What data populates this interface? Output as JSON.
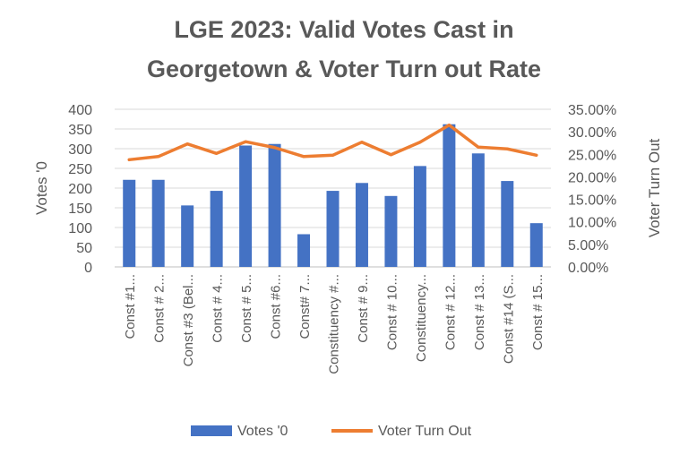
{
  "chart_data": {
    "type": "bar+line",
    "title_lines": [
      "LGE 2023: Valid Votes Cast in",
      "Georgetown & Voter Turn out Rate"
    ],
    "ylabel_left": "Votes '0",
    "ylabel_right": "Voter Turn Out",
    "y_left_lim": [
      0,
      400
    ],
    "y_left_ticks": [
      "400",
      "350",
      "300",
      "250",
      "200",
      "150",
      "100",
      "50",
      "0"
    ],
    "y_right_lim": [
      0,
      0.35
    ],
    "y_right_ticks": [
      "35.00%",
      "30.00%",
      "25.00%",
      "20.00%",
      "15.00%",
      "10.00%",
      "5.00%",
      "0.00%"
    ],
    "grid": true,
    "legend_position": "bottom",
    "categories": [
      "Const #1...",
      "Const # 2...",
      "Const #3 (Bel...",
      "Const # 4...",
      "Const # 5...",
      "Const #6...",
      "Const# 7...",
      "Constituency #...",
      "Const # 9...",
      "Const # 10...",
      "Constituency...",
      "Const # 12...",
      "Const # 13...",
      "Const #14 (S...",
      "Const # 15..."
    ],
    "series": [
      {
        "name": "Votes '0",
        "type": "bar",
        "color": "#4472C4",
        "values": [
          221,
          221,
          156,
          193,
          308,
          312,
          83,
          193,
          213,
          180,
          256,
          362,
          288,
          218,
          111
        ]
      },
      {
        "name": "Voter Turn Out",
        "type": "line",
        "color": "#ED7D31",
        "values": [
          0.238,
          0.245,
          0.273,
          0.252,
          0.278,
          0.265,
          0.245,
          0.248,
          0.277,
          0.249,
          0.277,
          0.315,
          0.266,
          0.262,
          0.248
        ]
      }
    ]
  }
}
